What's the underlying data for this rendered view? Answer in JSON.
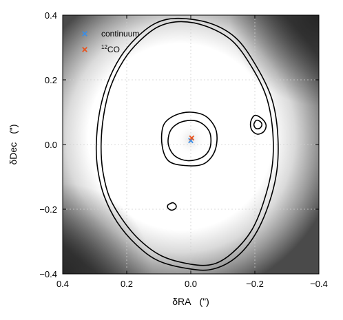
{
  "chart_data": {
    "type": "heatmap",
    "title": "",
    "xlabel": "δRA",
    "xunit": "(\")",
    "ylabel": "δDec",
    "yunit": "(\")",
    "xlim": [
      0.4,
      -0.4
    ],
    "ylim": [
      -0.4,
      0.4
    ],
    "xticks": [
      {
        "value": 0.4,
        "label": "0.4"
      },
      {
        "value": 0.2,
        "label": "0.2"
      },
      {
        "value": 0.0,
        "label": "0.0"
      },
      {
        "value": -0.2,
        "label": "−0.2"
      },
      {
        "value": -0.4,
        "label": "−0.4"
      }
    ],
    "yticks": [
      {
        "value": 0.4,
        "label": "0.4"
      },
      {
        "value": 0.2,
        "label": "0.2"
      },
      {
        "value": 0.0,
        "label": "0.0"
      },
      {
        "value": -0.2,
        "label": "−0.2"
      },
      {
        "value": -0.4,
        "label": "−0.4"
      }
    ],
    "grid": true,
    "colormap": "greyscale",
    "legend_position": "top-left",
    "legend": [
      {
        "label": "continuum",
        "marker": "x",
        "color": "#3a8ee6"
      },
      {
        "label": "CO",
        "superscript": "12",
        "marker": "x",
        "color": "#e8541f"
      }
    ],
    "markers": [
      {
        "series": "continuum",
        "x": 0.0,
        "y": 0.012
      },
      {
        "series": "12CO",
        "x": -0.003,
        "y": 0.02
      }
    ],
    "contours": [
      {
        "name": "outer-contour",
        "points": [
          [
            0.04,
            0.39
          ],
          [
            0.11,
            0.375
          ],
          [
            0.17,
            0.33
          ],
          [
            0.22,
            0.27
          ],
          [
            0.26,
            0.19
          ],
          [
            0.285,
            0.1
          ],
          [
            0.295,
            0.0
          ],
          [
            0.29,
            -0.08
          ],
          [
            0.27,
            -0.16
          ],
          [
            0.23,
            -0.24
          ],
          [
            0.17,
            -0.31
          ],
          [
            0.1,
            -0.36
          ],
          [
            0.0,
            -0.385
          ],
          [
            -0.07,
            -0.385
          ],
          [
            -0.14,
            -0.35
          ],
          [
            -0.2,
            -0.28
          ],
          [
            -0.245,
            -0.18
          ],
          [
            -0.27,
            -0.07
          ],
          [
            -0.27,
            0.05
          ],
          [
            -0.25,
            0.15
          ],
          [
            -0.2,
            0.25
          ],
          [
            -0.14,
            0.33
          ],
          [
            -0.06,
            0.375
          ]
        ]
      },
      {
        "name": "inner-ring-contour",
        "points": [
          [
            0.03,
            0.38
          ],
          [
            0.1,
            0.365
          ],
          [
            0.16,
            0.32
          ],
          [
            0.21,
            0.26
          ],
          [
            0.25,
            0.18
          ],
          [
            0.272,
            0.09
          ],
          [
            0.28,
            0.0
          ],
          [
            0.275,
            -0.08
          ],
          [
            0.255,
            -0.16
          ],
          [
            0.215,
            -0.23
          ],
          [
            0.16,
            -0.295
          ],
          [
            0.09,
            -0.345
          ],
          [
            0.0,
            -0.37
          ],
          [
            -0.07,
            -0.37
          ],
          [
            -0.13,
            -0.335
          ],
          [
            -0.19,
            -0.265
          ],
          [
            -0.23,
            -0.17
          ],
          [
            -0.255,
            -0.06
          ],
          [
            -0.255,
            0.05
          ],
          [
            -0.235,
            0.15
          ],
          [
            -0.19,
            0.24
          ],
          [
            -0.13,
            0.32
          ],
          [
            -0.05,
            0.365
          ]
        ]
      },
      {
        "name": "core-contour-outer",
        "points": [
          [
            0.0,
            0.1
          ],
          [
            0.05,
            0.09
          ],
          [
            0.085,
            0.06
          ],
          [
            0.09,
            0.0
          ],
          [
            0.07,
            -0.05
          ],
          [
            0.02,
            -0.065
          ],
          [
            -0.04,
            -0.06
          ],
          [
            -0.075,
            -0.02
          ],
          [
            -0.08,
            0.04
          ],
          [
            -0.05,
            0.085
          ]
        ]
      },
      {
        "name": "core-contour-inner",
        "points": [
          [
            0.0,
            0.075
          ],
          [
            0.04,
            0.065
          ],
          [
            0.065,
            0.04
          ],
          [
            0.07,
            0.0
          ],
          [
            0.05,
            -0.035
          ],
          [
            0.01,
            -0.05
          ],
          [
            -0.035,
            -0.04
          ],
          [
            -0.06,
            -0.01
          ],
          [
            -0.06,
            0.035
          ],
          [
            -0.035,
            0.065
          ]
        ]
      },
      {
        "name": "blob-contour-right",
        "points": [
          [
            -0.2,
            0.09
          ],
          [
            -0.222,
            0.08
          ],
          [
            -0.235,
            0.06
          ],
          [
            -0.228,
            0.04
          ],
          [
            -0.208,
            0.032
          ],
          [
            -0.19,
            0.045
          ],
          [
            -0.187,
            0.07
          ]
        ]
      },
      {
        "name": "blob-contour-right-inner",
        "points": [
          [
            -0.205,
            0.075
          ],
          [
            -0.218,
            0.07
          ],
          [
            -0.222,
            0.06
          ],
          [
            -0.215,
            0.05
          ],
          [
            -0.203,
            0.05
          ],
          [
            -0.197,
            0.062
          ]
        ]
      },
      {
        "name": "blob-contour-bottom",
        "points": [
          [
            0.065,
            -0.183
          ],
          [
            0.055,
            -0.18
          ],
          [
            0.046,
            -0.188
          ],
          [
            0.048,
            -0.198
          ],
          [
            0.06,
            -0.203
          ],
          [
            0.071,
            -0.197
          ],
          [
            0.072,
            -0.188
          ]
        ]
      }
    ]
  }
}
